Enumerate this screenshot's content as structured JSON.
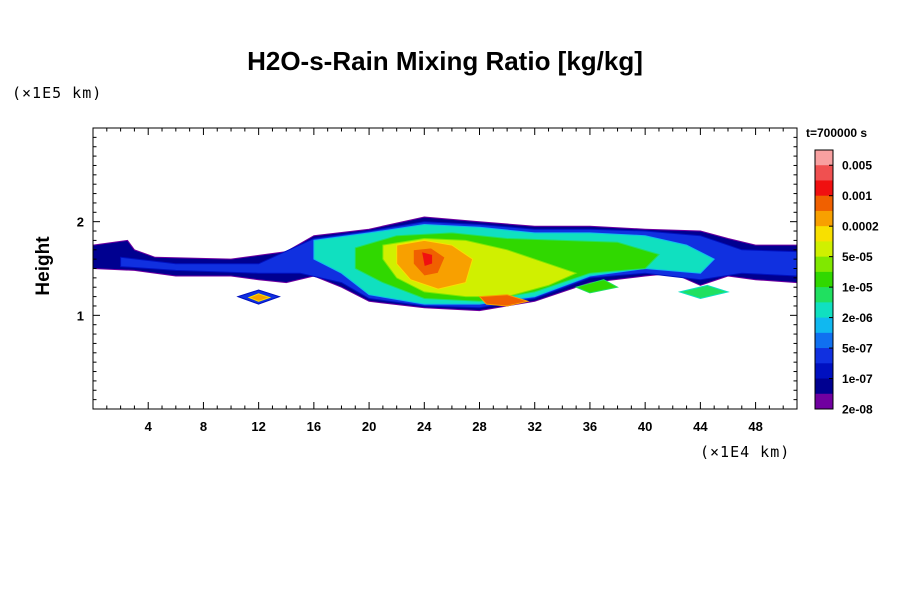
{
  "chart_data": {
    "type": "heatmap",
    "title": "H2O-s-Rain Mixing Ratio [kg/kg]",
    "ylabel": "Height",
    "xlabel": "",
    "y_unit_label": "(×1E5 km)",
    "x_unit_label": "(×1E4 km)",
    "time_label": "t=700000 s",
    "xlim": [
      0,
      51
    ],
    "ylim": [
      0,
      3
    ],
    "x_ticks": [
      4,
      8,
      12,
      16,
      20,
      24,
      28,
      32,
      36,
      40,
      44,
      48
    ],
    "y_ticks": [
      1,
      2
    ],
    "colorbar": {
      "labels": [
        "0.005",
        "0.001",
        "0.0002",
        "5e-05",
        "1e-05",
        "2e-06",
        "5e-07",
        "1e-07",
        "2e-08"
      ],
      "colors": [
        "#f8a0a0",
        "#f05050",
        "#f01010",
        "#f06000",
        "#f8a000",
        "#f8e000",
        "#d0f000",
        "#80e800",
        "#30d800",
        "#20e060",
        "#10e0c0",
        "#10b8f0",
        "#1070f0",
        "#1030e0",
        "#0010c0",
        "#000090",
        "#7000a0"
      ]
    },
    "regions": [
      {
        "level": 15,
        "pts": [
          [
            0,
            1.75
          ],
          [
            2.5,
            1.8
          ],
          [
            3,
            1.7
          ],
          [
            4.5,
            1.62
          ],
          [
            10,
            1.6
          ],
          [
            14,
            1.68
          ],
          [
            16,
            1.85
          ],
          [
            20,
            1.92
          ],
          [
            24,
            2.05
          ],
          [
            28,
            2.0
          ],
          [
            32,
            1.95
          ],
          [
            36,
            1.95
          ],
          [
            40,
            1.92
          ],
          [
            44,
            1.9
          ],
          [
            46,
            1.82
          ],
          [
            48,
            1.75
          ],
          [
            51,
            1.75
          ],
          [
            51,
            1.35
          ],
          [
            48,
            1.38
          ],
          [
            46,
            1.42
          ],
          [
            44,
            1.32
          ],
          [
            42,
            1.45
          ],
          [
            40,
            1.42
          ],
          [
            36,
            1.35
          ],
          [
            32,
            1.15
          ],
          [
            28,
            1.05
          ],
          [
            24,
            1.08
          ],
          [
            20,
            1.15
          ],
          [
            18,
            1.3
          ],
          [
            16,
            1.42
          ],
          [
            14,
            1.35
          ],
          [
            12,
            1.38
          ],
          [
            10,
            1.42
          ],
          [
            6,
            1.42
          ],
          [
            3,
            1.48
          ],
          [
            0,
            1.5
          ]
        ]
      },
      {
        "level": 13,
        "pts": [
          [
            2,
            1.62
          ],
          [
            6,
            1.55
          ],
          [
            12,
            1.55
          ],
          [
            16,
            1.82
          ],
          [
            20,
            1.9
          ],
          [
            24,
            2.0
          ],
          [
            28,
            1.97
          ],
          [
            32,
            1.92
          ],
          [
            36,
            1.92
          ],
          [
            40,
            1.9
          ],
          [
            44,
            1.85
          ],
          [
            47,
            1.7
          ],
          [
            51,
            1.68
          ],
          [
            51,
            1.42
          ],
          [
            47,
            1.45
          ],
          [
            44,
            1.38
          ],
          [
            40,
            1.45
          ],
          [
            36,
            1.4
          ],
          [
            32,
            1.18
          ],
          [
            28,
            1.08
          ],
          [
            24,
            1.1
          ],
          [
            20,
            1.18
          ],
          [
            18,
            1.35
          ],
          [
            15,
            1.45
          ],
          [
            12,
            1.45
          ],
          [
            6,
            1.48
          ],
          [
            2,
            1.52
          ]
        ]
      },
      {
        "level": 10,
        "pts": [
          [
            16,
            1.8
          ],
          [
            20,
            1.88
          ],
          [
            24,
            1.97
          ],
          [
            28,
            1.94
          ],
          [
            32,
            1.88
          ],
          [
            36,
            1.88
          ],
          [
            40,
            1.85
          ],
          [
            43,
            1.75
          ],
          [
            45,
            1.6
          ],
          [
            44,
            1.45
          ],
          [
            40,
            1.5
          ],
          [
            36,
            1.42
          ],
          [
            32,
            1.2
          ],
          [
            28,
            1.12
          ],
          [
            24,
            1.12
          ],
          [
            20,
            1.22
          ],
          [
            18,
            1.45
          ],
          [
            16,
            1.6
          ]
        ]
      },
      {
        "level": 8,
        "pts": [
          [
            19,
            1.72
          ],
          [
            22,
            1.85
          ],
          [
            26,
            1.88
          ],
          [
            30,
            1.82
          ],
          [
            34,
            1.8
          ],
          [
            38,
            1.78
          ],
          [
            41,
            1.65
          ],
          [
            40,
            1.5
          ],
          [
            36,
            1.45
          ],
          [
            32,
            1.25
          ],
          [
            28,
            1.15
          ],
          [
            24,
            1.18
          ],
          [
            21,
            1.35
          ],
          [
            19,
            1.5
          ]
        ]
      },
      {
        "level": 6,
        "pts": [
          [
            21,
            1.75
          ],
          [
            24,
            1.82
          ],
          [
            27,
            1.8
          ],
          [
            30,
            1.7
          ],
          [
            33,
            1.55
          ],
          [
            35,
            1.45
          ],
          [
            33,
            1.32
          ],
          [
            30,
            1.2
          ],
          [
            27,
            1.2
          ],
          [
            24,
            1.25
          ],
          [
            22,
            1.4
          ],
          [
            21,
            1.6
          ]
        ]
      },
      {
        "level": 4,
        "pts": [
          [
            22,
            1.75
          ],
          [
            24,
            1.8
          ],
          [
            26,
            1.75
          ],
          [
            27.5,
            1.6
          ],
          [
            27,
            1.35
          ],
          [
            25,
            1.28
          ],
          [
            23,
            1.38
          ],
          [
            22,
            1.55
          ]
        ]
      },
      {
        "level": 3,
        "pts": [
          [
            23.2,
            1.7
          ],
          [
            24.5,
            1.72
          ],
          [
            25.5,
            1.62
          ],
          [
            25,
            1.45
          ],
          [
            24,
            1.42
          ],
          [
            23.2,
            1.55
          ]
        ]
      },
      {
        "level": 2,
        "pts": [
          [
            23.8,
            1.68
          ],
          [
            24.6,
            1.65
          ],
          [
            24.6,
            1.55
          ],
          [
            24,
            1.52
          ]
        ]
      },
      {
        "level": 3,
        "pts": [
          [
            28,
            1.2
          ],
          [
            30,
            1.22
          ],
          [
            31.5,
            1.15
          ],
          [
            30,
            1.1
          ],
          [
            28.5,
            1.12
          ]
        ]
      },
      {
        "level": 13,
        "pts": [
          [
            10.5,
            1.2
          ],
          [
            12,
            1.27
          ],
          [
            13.5,
            1.2
          ],
          [
            12,
            1.12
          ]
        ]
      },
      {
        "level": 4,
        "pts": [
          [
            11.3,
            1.19
          ],
          [
            12,
            1.23
          ],
          [
            12.8,
            1.19
          ],
          [
            12,
            1.15
          ]
        ]
      },
      {
        "level": 9,
        "pts": [
          [
            42.5,
            1.25
          ],
          [
            44.5,
            1.32
          ],
          [
            46,
            1.25
          ],
          [
            44,
            1.18
          ]
        ]
      },
      {
        "level": 8,
        "pts": [
          [
            35,
            1.3
          ],
          [
            37,
            1.38
          ],
          [
            38,
            1.3
          ],
          [
            36,
            1.24
          ]
        ]
      }
    ]
  }
}
